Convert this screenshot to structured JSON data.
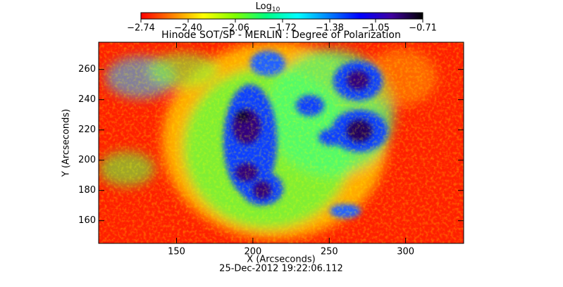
{
  "chart_data": {
    "type": "image",
    "title": "Hinode SOT/SP - MERLIN : Degree of Polarization",
    "footer": "25-Dec-2012 19:22:06.112",
    "x_label": "X (Arcseconds)",
    "y_label": "Y (Arcseconds)",
    "xlim": [
      99,
      338
    ],
    "ylim": [
      145,
      278
    ],
    "xticks": [
      150,
      200,
      250,
      300
    ],
    "yticks": [
      160,
      180,
      200,
      220,
      240,
      260
    ],
    "colorbar": {
      "title": "Log",
      "title_subscript": "10",
      "clim": [
        -2.74,
        -0.71
      ],
      "ticks": [
        {
          "value": -2.74,
          "label": "−2.74"
        },
        {
          "value": -2.4,
          "label": "−2.40"
        },
        {
          "value": -2.06,
          "label": "−2.06"
        },
        {
          "value": -1.72,
          "label": "−1.72"
        },
        {
          "value": -1.38,
          "label": "−1.38"
        },
        {
          "value": -1.05,
          "label": "−1.05"
        },
        {
          "value": -0.71,
          "label": "−0.71"
        }
      ],
      "colormap": [
        "#ff0000",
        "#ff8000",
        "#ffff00",
        "#80ff00",
        "#00ff80",
        "#00ffff",
        "#0080ff",
        "#0000ff",
        "#4000a0",
        "#000000"
      ]
    }
  }
}
